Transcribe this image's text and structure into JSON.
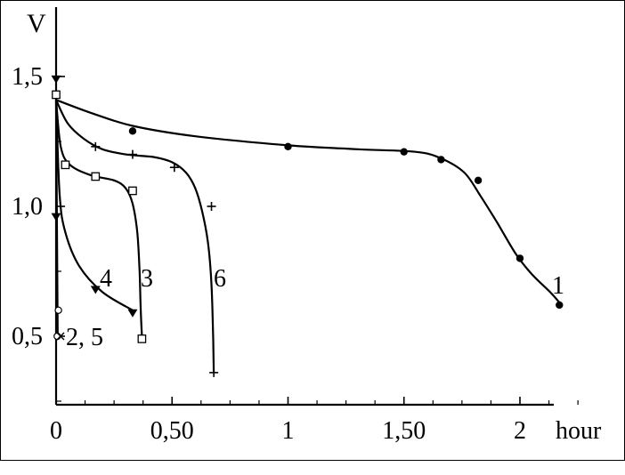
{
  "chart_data": {
    "type": "line",
    "ylabel": "V",
    "xlabel": "hour",
    "xlim": [
      0,
      2.4
    ],
    "ylim": [
      0.25,
      1.6
    ],
    "x_ticks": [
      {
        "value": 0,
        "label": "0"
      },
      {
        "value": 0.5,
        "label": "0,50"
      },
      {
        "value": 1,
        "label": "1"
      },
      {
        "value": 1.5,
        "label": "1,50"
      },
      {
        "value": 2,
        "label": "2"
      }
    ],
    "y_ticks": [
      {
        "value": 0.5,
        "label": "0,5"
      },
      {
        "value": 1.0,
        "label": "1,0"
      },
      {
        "value": 1.5,
        "label": "1,5"
      }
    ],
    "series": [
      {
        "name": "1",
        "marker": "circle-filled",
        "curve": [
          [
            0,
            1.41
          ],
          [
            0.15,
            1.36
          ],
          [
            0.33,
            1.31
          ],
          [
            0.6,
            1.27
          ],
          [
            1.0,
            1.235
          ],
          [
            1.3,
            1.22
          ],
          [
            1.55,
            1.21
          ],
          [
            1.66,
            1.185
          ],
          [
            1.76,
            1.13
          ],
          [
            1.83,
            1.04
          ],
          [
            1.9,
            0.94
          ],
          [
            1.98,
            0.82
          ],
          [
            2.05,
            0.74
          ],
          [
            2.13,
            0.67
          ],
          [
            2.17,
            0.63
          ]
        ],
        "points": [
          [
            0.33,
            1.29
          ],
          [
            1.0,
            1.23
          ],
          [
            1.5,
            1.21
          ],
          [
            1.66,
            1.18
          ],
          [
            1.82,
            1.1
          ],
          [
            2.0,
            0.8
          ],
          [
            2.17,
            0.62
          ]
        ]
      },
      {
        "name": "6",
        "marker": "plus",
        "curve": [
          [
            0,
            1.41
          ],
          [
            0.05,
            1.32
          ],
          [
            0.12,
            1.26
          ],
          [
            0.2,
            1.22
          ],
          [
            0.3,
            1.2
          ],
          [
            0.42,
            1.19
          ],
          [
            0.5,
            1.17
          ],
          [
            0.56,
            1.13
          ],
          [
            0.6,
            1.07
          ],
          [
            0.63,
            0.98
          ],
          [
            0.655,
            0.86
          ],
          [
            0.67,
            0.7
          ],
          [
            0.677,
            0.5
          ],
          [
            0.68,
            0.36
          ]
        ],
        "points": [
          [
            0.17,
            1.23
          ],
          [
            0.33,
            1.2
          ],
          [
            0.51,
            1.15
          ],
          [
            0.67,
            1.0
          ],
          [
            0.68,
            0.36
          ]
        ]
      },
      {
        "name": "3",
        "marker": "square-open",
        "curve": [
          [
            0,
            1.41
          ],
          [
            0.02,
            1.23
          ],
          [
            0.06,
            1.16
          ],
          [
            0.15,
            1.12
          ],
          [
            0.25,
            1.1
          ],
          [
            0.3,
            1.07
          ],
          [
            0.33,
            1.01
          ],
          [
            0.35,
            0.9
          ],
          [
            0.36,
            0.75
          ],
          [
            0.365,
            0.6
          ],
          [
            0.37,
            0.5
          ]
        ],
        "points": [
          [
            0,
            1.43
          ],
          [
            0.04,
            1.16
          ],
          [
            0.17,
            1.115
          ],
          [
            0.33,
            1.06
          ],
          [
            0.37,
            0.49
          ]
        ]
      },
      {
        "name": "4",
        "marker": "triangle-down-filled",
        "curve": [
          [
            0,
            1.41
          ],
          [
            0.015,
            1.05
          ],
          [
            0.04,
            0.9
          ],
          [
            0.1,
            0.77
          ],
          [
            0.2,
            0.67
          ],
          [
            0.33,
            0.6
          ]
        ],
        "points": [
          [
            0,
            1.49
          ],
          [
            0,
            0.96
          ],
          [
            0.17,
            0.68
          ],
          [
            0.33,
            0.59
          ]
        ]
      },
      {
        "name": "2, 5",
        "marker": "circle-open",
        "curve": [
          [
            0,
            1.41
          ],
          [
            0.003,
            1.0
          ],
          [
            0.005,
            0.75
          ],
          [
            0.006,
            0.6
          ],
          [
            0.007,
            0.5
          ]
        ],
        "points": [
          [
            0.01,
            0.6
          ],
          [
            0.005,
            0.5
          ]
        ]
      }
    ],
    "annotations": [
      {
        "text": "1",
        "series": "1"
      },
      {
        "text": "6",
        "series": "6"
      },
      {
        "text": "3",
        "series": "3"
      },
      {
        "text": "4",
        "series": "4"
      },
      {
        "text": "2, 5",
        "series": "2, 5"
      }
    ],
    "grid": false,
    "legend": "none"
  }
}
